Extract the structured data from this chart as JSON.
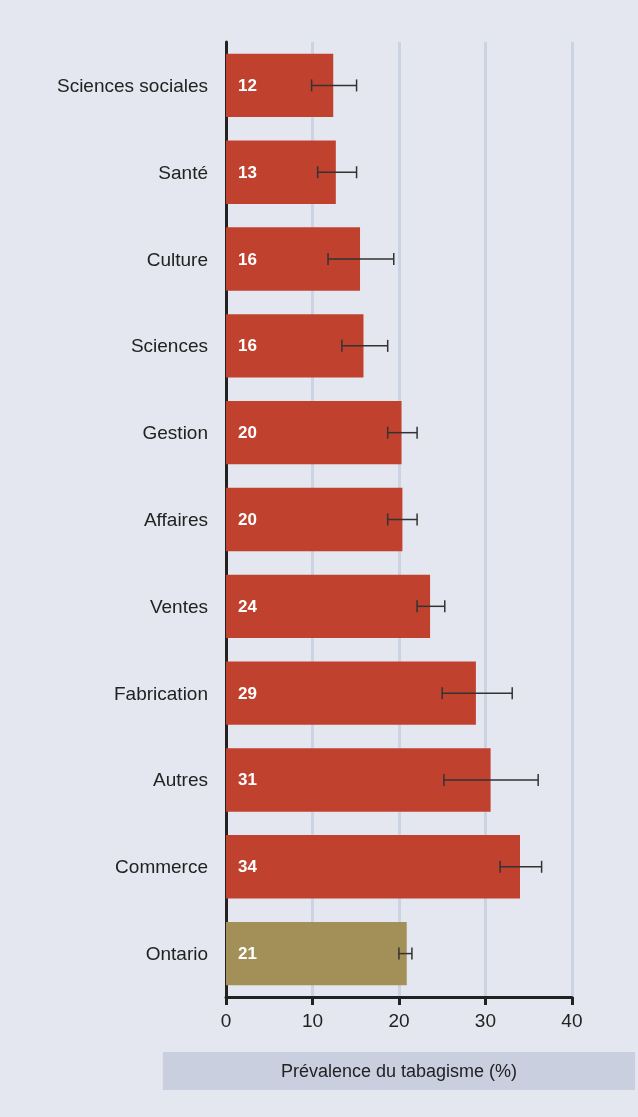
{
  "chart_data": {
    "type": "bar",
    "orientation": "horizontal",
    "categories": [
      "Sciences sociales",
      "Santé",
      "Culture",
      "Sciences",
      "Gestion",
      "Affaires",
      "Ventes",
      "Fabrication",
      "Autres",
      "Commerce",
      "Ontario"
    ],
    "values": [
      12.4,
      12.7,
      15.5,
      15.9,
      20.3,
      20.4,
      23.6,
      28.9,
      30.6,
      34.0,
      20.9
    ],
    "value_labels": [
      "12",
      "13",
      "16",
      "16",
      "20",
      "20",
      "24",
      "29",
      "31",
      "34",
      "21"
    ],
    "errors": [
      [
        9.9,
        15.1
      ],
      [
        10.6,
        15.1
      ],
      [
        11.8,
        19.4
      ],
      [
        13.4,
        18.7
      ],
      [
        18.7,
        22.1
      ],
      [
        18.7,
        22.1
      ],
      [
        22.1,
        25.3
      ],
      [
        25.0,
        33.1
      ],
      [
        25.2,
        36.1
      ],
      [
        31.7,
        36.5
      ],
      [
        20.0,
        21.5
      ]
    ],
    "colors": [
      "#c1412f",
      "#c1412f",
      "#c1412f",
      "#c1412f",
      "#c1412f",
      "#c1412f",
      "#c1412f",
      "#c1412f",
      "#c1412f",
      "#c1412f",
      "#a38f58"
    ],
    "xlabel": "Prévalence du tabagisme (%)",
    "xlim": [
      0,
      40
    ],
    "xticks": [
      0,
      10,
      20,
      30,
      40
    ],
    "grid": "x"
  }
}
